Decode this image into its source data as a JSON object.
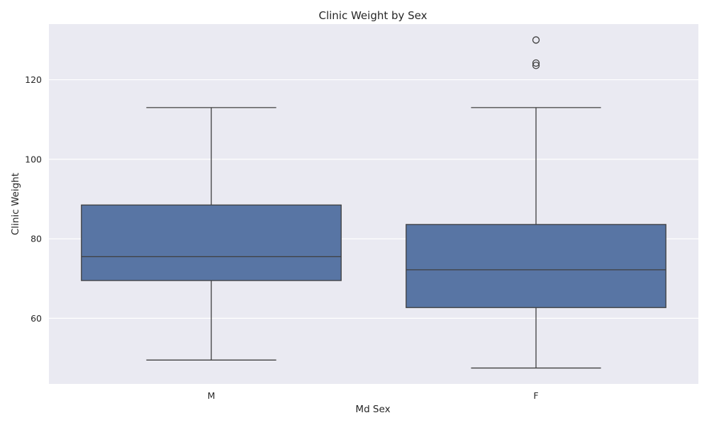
{
  "chart_data": {
    "type": "box",
    "title": "Clinic Weight by Sex",
    "xlabel": "Md Sex",
    "ylabel": "Clinic Weight",
    "categories": [
      "M",
      "F"
    ],
    "ylim": [
      43.5,
      134
    ],
    "yticks": [
      60,
      80,
      100,
      120
    ],
    "grid": true,
    "colors": {
      "box": "#5875a4",
      "background": "#eaeaf2",
      "line": "#3f3f3f",
      "grid": "#ffffff"
    },
    "boxes": [
      {
        "category": "M",
        "whisker_low": 49.5,
        "q1": 69.5,
        "median": 75.5,
        "q3": 88.5,
        "whisker_high": 113,
        "fliers": []
      },
      {
        "category": "F",
        "whisker_low": 47.5,
        "q1": 62.7,
        "median": 72.2,
        "q3": 83.6,
        "whisker_high": 113,
        "fliers": [
          124.2,
          123.6,
          130
        ]
      }
    ]
  }
}
